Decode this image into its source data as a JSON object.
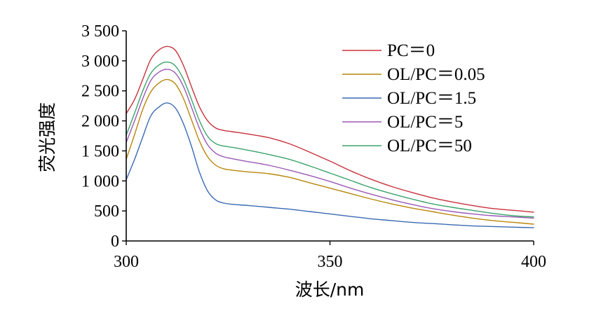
{
  "chart_data": {
    "type": "line",
    "xlabel": "波长/nm",
    "ylabel": "荧光强度",
    "xlim": [
      300,
      400
    ],
    "ylim": [
      0,
      3500
    ],
    "x_ticks": [
      300,
      350,
      400
    ],
    "x_tick_labels": [
      "300",
      "350",
      "400"
    ],
    "y_ticks": [
      0,
      500,
      1000,
      1500,
      2000,
      2500,
      3000,
      3500
    ],
    "y_tick_labels": [
      "0",
      "500",
      "1 000",
      "1 500",
      "2 000",
      "2 500",
      "3 000",
      "3 500"
    ],
    "grid": false,
    "legend_position": "top-right",
    "x": [
      300,
      302,
      304,
      306,
      308,
      310,
      312,
      314,
      316,
      318,
      320,
      322,
      324,
      326,
      330,
      335,
      340,
      345,
      350,
      355,
      360,
      365,
      370,
      375,
      380,
      385,
      390,
      395,
      400
    ],
    "series": [
      {
        "name": "PC＝0",
        "color": "#c8323c",
        "values": [
          2120,
          2350,
          2680,
          3020,
          3180,
          3240,
          3180,
          2930,
          2570,
          2230,
          2000,
          1880,
          1840,
          1820,
          1780,
          1720,
          1620,
          1480,
          1330,
          1170,
          1030,
          910,
          810,
          720,
          650,
          590,
          540,
          510,
          480
        ]
      },
      {
        "name": "OL/PC＝0.05",
        "color": "#b8860b",
        "values": [
          1360,
          1760,
          2180,
          2480,
          2630,
          2690,
          2620,
          2380,
          2020,
          1660,
          1400,
          1260,
          1200,
          1180,
          1150,
          1120,
          1060,
          970,
          880,
          790,
          700,
          620,
          550,
          490,
          430,
          380,
          340,
          310,
          280
        ]
      },
      {
        "name": "OL/PC＝1.5",
        "color": "#3a6ab4",
        "values": [
          1020,
          1350,
          1720,
          2080,
          2230,
          2300,
          2220,
          1960,
          1580,
          1140,
          830,
          680,
          630,
          610,
          590,
          560,
          530,
          490,
          450,
          410,
          370,
          340,
          310,
          290,
          270,
          250,
          240,
          230,
          220
        ]
      },
      {
        "name": "OL/PC＝5",
        "color": "#9b59b6",
        "values": [
          1640,
          1990,
          2360,
          2670,
          2810,
          2860,
          2800,
          2580,
          2230,
          1870,
          1600,
          1460,
          1400,
          1370,
          1320,
          1260,
          1180,
          1090,
          990,
          880,
          780,
          690,
          610,
          540,
          490,
          450,
          420,
          400,
          380
        ]
      },
      {
        "name": "OL/PC＝50",
        "color": "#3aa36a",
        "values": [
          1760,
          2120,
          2490,
          2790,
          2930,
          2980,
          2920,
          2700,
          2360,
          2000,
          1740,
          1620,
          1580,
          1560,
          1510,
          1440,
          1360,
          1250,
          1130,
          1010,
          890,
          790,
          700,
          620,
          560,
          510,
          460,
          420,
          400
        ]
      }
    ]
  }
}
